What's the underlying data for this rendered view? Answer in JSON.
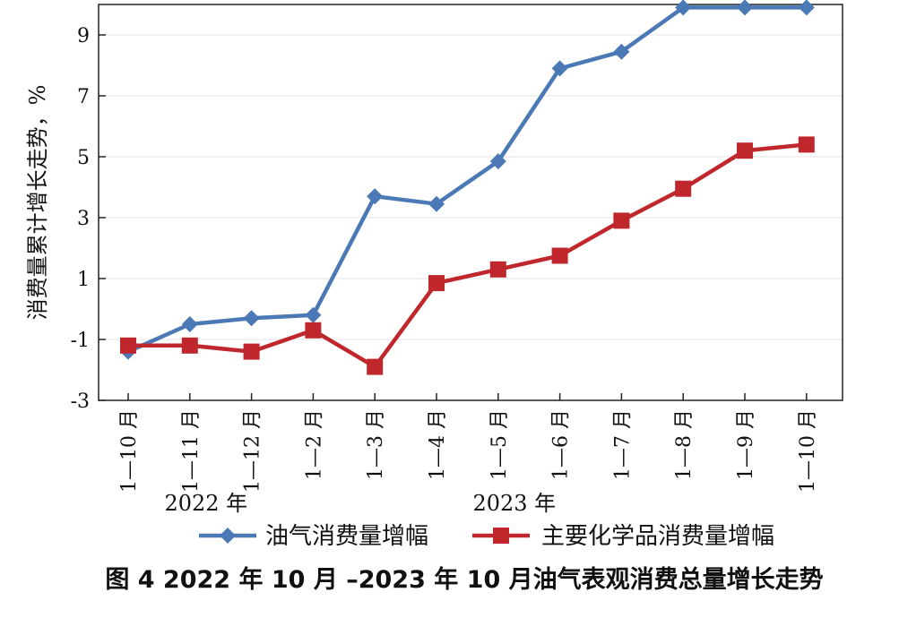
{
  "chart_data": {
    "type": "line",
    "caption": "图 4  2022 年 10 月 –2023 年 10 月油气表观消费总量增长走势",
    "xlabel": "",
    "ylabel": "消费量累计增长走势，%",
    "categories": [
      "1—10 月",
      "1—11 月",
      "1—12 月",
      "1—2 月",
      "1—3 月",
      "1—4 月",
      "1—5 月",
      "1—6 月",
      "1—7 月",
      "1—8 月",
      "1—9 月",
      "1—10 月"
    ],
    "year_labels": [
      {
        "text": "2022 年",
        "category_index": 1
      },
      {
        "text": "2023 年",
        "category_index": 6
      }
    ],
    "ylim": [
      -3,
      10
    ],
    "yticks": [
      -3,
      -1,
      1,
      3,
      5,
      7,
      9
    ],
    "grid": true,
    "legend_position": "bottom",
    "series": [
      {
        "name": "油气消费量增幅",
        "color": "#4a79b5",
        "marker": "diamond",
        "values": [
          -1.4,
          -0.5,
          -0.3,
          -0.2,
          3.7,
          3.45,
          4.85,
          7.9,
          8.45,
          9.9,
          9.9,
          9.9
        ]
      },
      {
        "name": "主要化学品消费量增幅",
        "color": "#c0272d",
        "marker": "square",
        "values": [
          -1.2,
          -1.2,
          -1.4,
          -0.7,
          -1.9,
          0.85,
          1.3,
          1.75,
          2.9,
          3.95,
          5.2,
          5.4
        ]
      }
    ]
  }
}
